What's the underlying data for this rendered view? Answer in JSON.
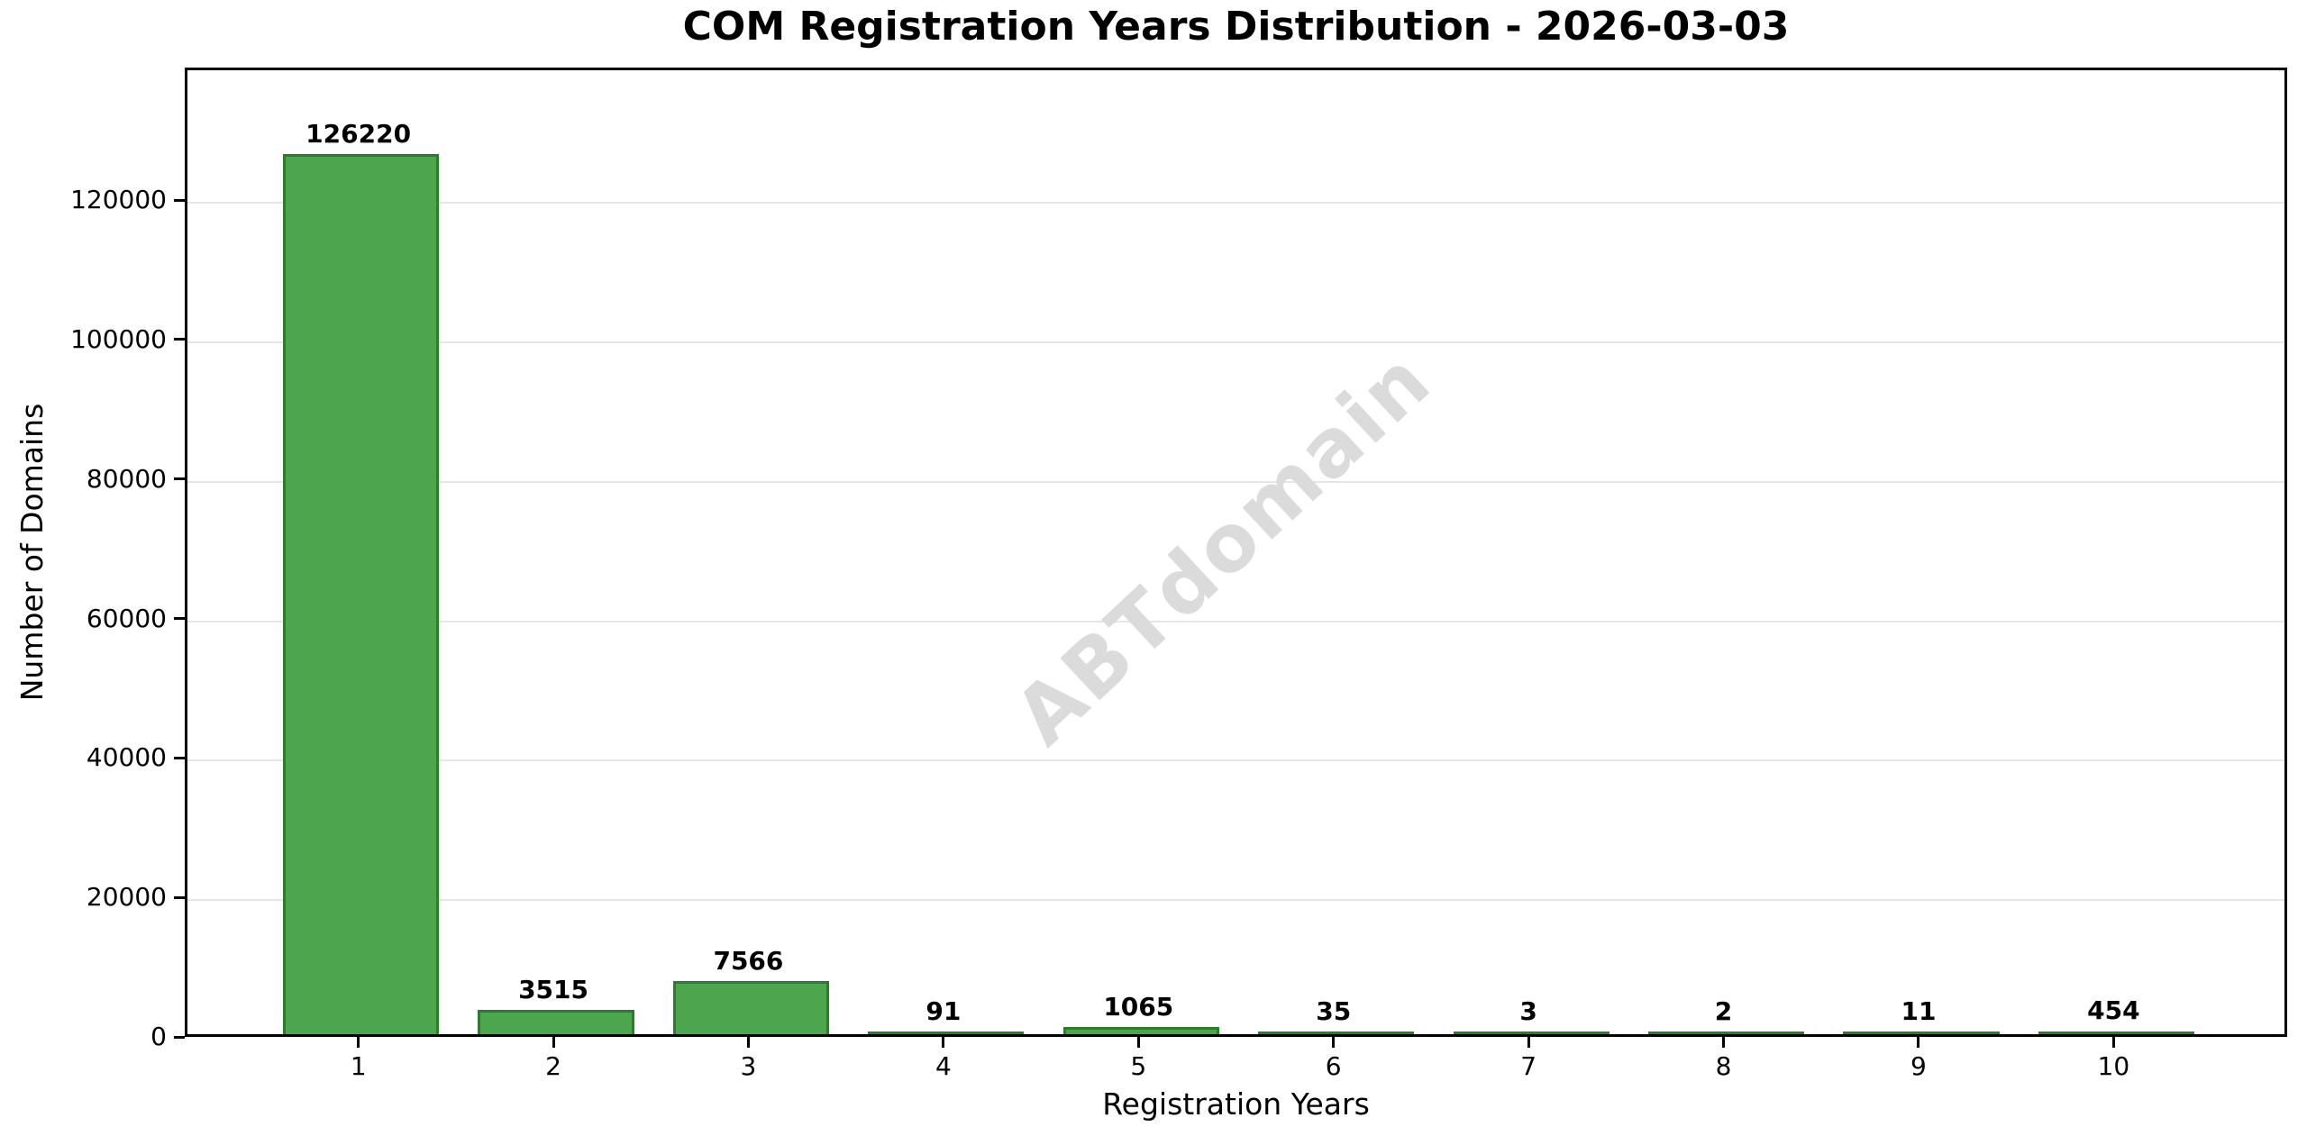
{
  "chart_data": {
    "type": "bar",
    "title": "COM Registration Years Distribution - 2026-03-03",
    "xlabel": "Registration Years",
    "ylabel": "Number of Domains",
    "categories": [
      "1",
      "2",
      "3",
      "4",
      "5",
      "6",
      "7",
      "8",
      "9",
      "10"
    ],
    "values": [
      126220,
      3515,
      7566,
      91,
      1065,
      35,
      3,
      2,
      11,
      454
    ],
    "yticks": [
      0,
      20000,
      40000,
      60000,
      80000,
      100000,
      120000
    ],
    "ylim": [
      0,
      139000
    ],
    "xlim": [
      0.11,
      10.89
    ],
    "bar_width": 0.8,
    "grid": true,
    "legend_position": "none",
    "watermark": "ABTdomain",
    "colors": {
      "bar_fill": "#4DA64D",
      "bar_edge": "#2A7E2A",
      "grid_line": "#E6E6E6",
      "axis": "#000000",
      "text": "#000000",
      "watermark": "#DBDBDB"
    }
  }
}
